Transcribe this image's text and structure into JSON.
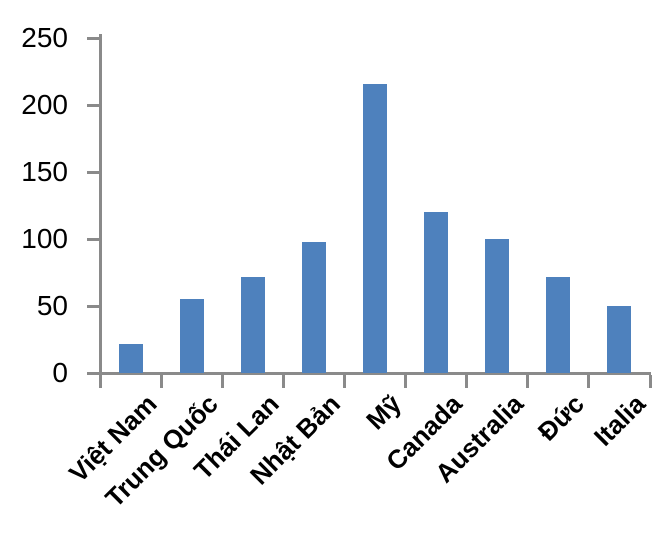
{
  "chart_data": {
    "type": "bar",
    "title": "",
    "xlabel": "",
    "ylabel": "",
    "categories": [
      "Việt Nam",
      "Trung Quốc",
      "Thái Lan",
      "Nhật Bản",
      "Mỹ",
      "Canada",
      "Australia",
      "Đức",
      "Italia"
    ],
    "values": [
      22,
      55,
      72,
      98,
      216,
      120,
      100,
      72,
      50
    ],
    "ylim": [
      0,
      250
    ],
    "yticks": [
      0,
      50,
      100,
      150,
      200,
      250
    ],
    "grid": false,
    "legend": null,
    "bar_color": "#4e81bd",
    "axis_color": "#8a8a8a",
    "label_color": "#000000"
  }
}
